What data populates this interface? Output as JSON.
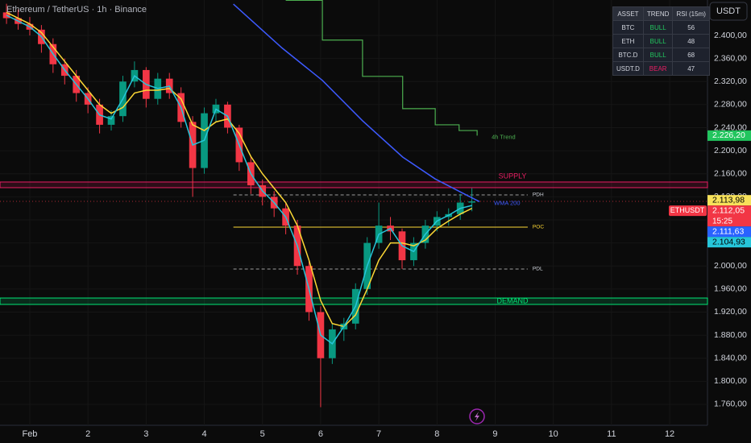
{
  "chart_data": {
    "type": "candlestick",
    "title": "Ethereum / TetherUS · 1h · Binance",
    "currency": "USDT",
    "up_color": "#089981",
    "down_color": "#f23645",
    "xlim": [
      0.488,
      12.65
    ],
    "ylim": [
      1723.6,
      2461.5
    ],
    "xticks": [
      {
        "value": 1,
        "label": "Feb"
      },
      2,
      3,
      4,
      5,
      6,
      7,
      8,
      9,
      10,
      11,
      12
    ],
    "yticks": [
      {
        "value": 1760,
        "label": "1.760,00"
      },
      {
        "value": 1800,
        "label": "1.800,00"
      },
      {
        "value": 1840,
        "label": "1.840,00"
      },
      {
        "value": 1880,
        "label": "1.880,00"
      },
      {
        "value": 1920,
        "label": "1.920,00"
      },
      {
        "value": 1960,
        "label": "1.960,00"
      },
      {
        "value": 2000,
        "label": "2.000,00"
      },
      {
        "value": 2040,
        "label": "2.040,00"
      },
      {
        "value": 2080,
        "label": "2.080,00"
      },
      {
        "value": 2120,
        "label": "2.120,00"
      },
      {
        "value": 2160,
        "label": "2.160,00"
      },
      {
        "value": 2200,
        "label": "2.200,00"
      },
      {
        "value": 2240,
        "label": "2.240,00"
      },
      {
        "value": 2280,
        "label": "2.280,00"
      },
      {
        "value": 2320,
        "label": "2.320,00"
      },
      {
        "value": 2360,
        "label": "2.360,00"
      },
      {
        "value": 2400,
        "label": "2.400,00"
      }
    ],
    "grid": true,
    "x": [
      0.6,
      0.8,
      1.0,
      1.2,
      1.4,
      1.6,
      1.8,
      2.0,
      2.2,
      2.4,
      2.6,
      2.8,
      3.0,
      3.2,
      3.4,
      3.6,
      3.8,
      4.0,
      4.2,
      4.4,
      4.6,
      4.8,
      5.0,
      5.2,
      5.4,
      5.6,
      5.8,
      6.0,
      6.2,
      6.4,
      6.6,
      6.8,
      7.0,
      7.2,
      7.4,
      7.6,
      7.8,
      8.0,
      8.2,
      8.4,
      8.6
    ],
    "open": [
      2440,
      2430,
      2420,
      2410,
      2385,
      2350,
      2330,
      2300,
      2280,
      2245,
      2260,
      2320,
      2340,
      2290,
      2325,
      2300,
      2250,
      2170,
      2265,
      2280,
      2240,
      2180,
      2140,
      2120,
      2100,
      2070,
      2000,
      1920,
      1840,
      1890,
      1900,
      1960,
      2040,
      2070,
      2060,
      2010,
      2040,
      2070,
      2085,
      2090,
      2110
    ],
    "high": [
      2455,
      2445,
      2432,
      2418,
      2395,
      2360,
      2340,
      2310,
      2290,
      2270,
      2330,
      2355,
      2345,
      2335,
      2335,
      2310,
      2260,
      2275,
      2290,
      2285,
      2245,
      2190,
      2150,
      2130,
      2110,
      2080,
      2010,
      1930,
      1900,
      1910,
      1970,
      2050,
      2110,
      2085,
      2065,
      2050,
      2080,
      2095,
      2100,
      2125,
      2135
    ],
    "low": [
      2420,
      2410,
      2400,
      2370,
      2335,
      2315,
      2285,
      2265,
      2230,
      2235,
      2250,
      2310,
      2275,
      2280,
      2290,
      2240,
      2120,
      2160,
      2250,
      2230,
      2165,
      2125,
      2105,
      2085,
      2055,
      1985,
      1905,
      1755,
      1830,
      1870,
      1890,
      1950,
      2030,
      2045,
      1995,
      2000,
      2030,
      2060,
      2070,
      2080,
      2095
    ],
    "close": [
      2430,
      2420,
      2410,
      2385,
      2350,
      2330,
      2300,
      2280,
      2245,
      2260,
      2320,
      2340,
      2290,
      2325,
      2300,
      2250,
      2170,
      2265,
      2280,
      2240,
      2180,
      2140,
      2120,
      2100,
      2070,
      2000,
      1920,
      1840,
      1890,
      1900,
      1960,
      2040,
      2070,
      2060,
      2010,
      2040,
      2070,
      2085,
      2090,
      2110,
      2112.05
    ],
    "lines": [
      {
        "color": "#fdd835",
        "x": [
          0.6,
          0.8,
          1.0,
          1.2,
          1.4,
          1.6,
          1.8,
          2.0,
          2.2,
          2.4,
          2.6,
          2.8,
          3.0,
          3.2,
          3.4,
          3.6,
          3.8,
          4.0,
          4.2,
          4.4,
          4.6,
          4.8,
          5.0,
          5.2,
          5.4,
          5.6,
          5.8,
          6.0,
          6.2,
          6.4,
          6.6,
          6.8,
          7.0,
          7.2,
          7.4,
          7.6,
          7.8,
          8.0,
          8.2,
          8.4,
          8.6
        ],
        "values": [
          2440,
          2430,
          2420,
          2405,
          2380,
          2355,
          2330,
          2305,
          2280,
          2265,
          2275,
          2300,
          2305,
          2305,
          2308,
          2290,
          2245,
          2235,
          2250,
          2255,
          2230,
          2190,
          2160,
          2135,
          2110,
          2070,
          2010,
          1940,
          1900,
          1895,
          1915,
          1960,
          2010,
          2040,
          2040,
          2035,
          2045,
          2065,
          2078,
          2090,
          2100
        ]
      },
      {
        "color": "#26c6da",
        "x": [
          0.6,
          0.8,
          1.0,
          1.2,
          1.4,
          1.6,
          1.8,
          2.0,
          2.2,
          2.4,
          2.6,
          2.8,
          3.0,
          3.2,
          3.4,
          3.6,
          3.8,
          4.0,
          4.2,
          4.4,
          4.6,
          4.8,
          5.0,
          5.2,
          5.4,
          5.6,
          5.8,
          6.0,
          6.2,
          6.4,
          6.6,
          6.8,
          7.0,
          7.2,
          7.4,
          7.6,
          7.8,
          8.0,
          8.2,
          8.4,
          8.6
        ],
        "values": [
          2435,
          2425,
          2415,
          2398,
          2368,
          2340,
          2315,
          2290,
          2262,
          2255,
          2290,
          2330,
          2315,
          2308,
          2312,
          2275,
          2210,
          2218,
          2272,
          2260,
          2210,
          2160,
          2130,
          2110,
          2085,
          2035,
          1960,
          1880,
          1865,
          1895,
          1930,
          2000,
          2055,
          2065,
          2035,
          2025,
          2055,
          2078,
          2088,
          2100,
          2104.93
        ]
      },
      {
        "name": "WMA 200",
        "color": "#3d5afe",
        "x": [
          4.5,
          5.34,
          6.03,
          6.72,
          7.41,
          7.97,
          8.45,
          8.73
        ],
        "values": [
          2454.5,
          2378,
          2322,
          2252,
          2189,
          2151,
          2126,
          2111.63
        ]
      },
      {
        "name": "4h Trend",
        "color": "#4caf50",
        "step": true,
        "x": [
          5.4,
          6.03,
          6.72,
          7.41,
          7.97,
          8.38,
          8.69
        ],
        "values": [
          2461,
          2392,
          2329,
          2273,
          2245,
          2235,
          2226.2
        ]
      }
    ],
    "levels": [
      {
        "name": "SUPPLY",
        "color": "#e91e63",
        "from": 2135.9,
        "to": 2145.7
      },
      {
        "name": "PDH",
        "color": "#9e9e9e",
        "value": 2123.3,
        "style": "dashed",
        "xrange": [
          4.5,
          9.56
        ]
      },
      {
        "name": "POC",
        "color": "#fdd835",
        "value": 2067.4,
        "style": "solid",
        "xrange": [
          4.5,
          9.56
        ]
      },
      {
        "name": "PDL",
        "color": "#9e9e9e",
        "value": 1994.8,
        "style": "dashed",
        "xrange": [
          4.5,
          9.56
        ]
      },
      {
        "name": "DEMAND",
        "color": "#00e676",
        "from": 1933.3,
        "to": 1944.4
      }
    ],
    "price_labels": [
      {
        "value": 2226.2,
        "label": "2.226,20",
        "color": "#22c55e"
      },
      {
        "value": 2113.98,
        "label": "2.113,98",
        "color": "#f7e15a"
      },
      {
        "value": 2112.05,
        "label": "2.112,05",
        "color": "#f23645",
        "symbol": "ETHUSDT",
        "countdown": "15:25"
      },
      {
        "value": 2111.63,
        "label": "2.111,63",
        "color": "#2962ff"
      },
      {
        "value": 2104.93,
        "label": "2.104,93",
        "color": "#26c6da"
      }
    ]
  },
  "table": {
    "columns": [
      "ASSET",
      "TREND",
      "RSI (15m)"
    ],
    "rows": [
      [
        "BTC",
        "BULL",
        56
      ],
      [
        "ETH",
        "BULL",
        48
      ],
      [
        "BTC.D",
        "BULL",
        68
      ],
      [
        "USDT.D",
        "BEAR",
        47
      ]
    ]
  }
}
